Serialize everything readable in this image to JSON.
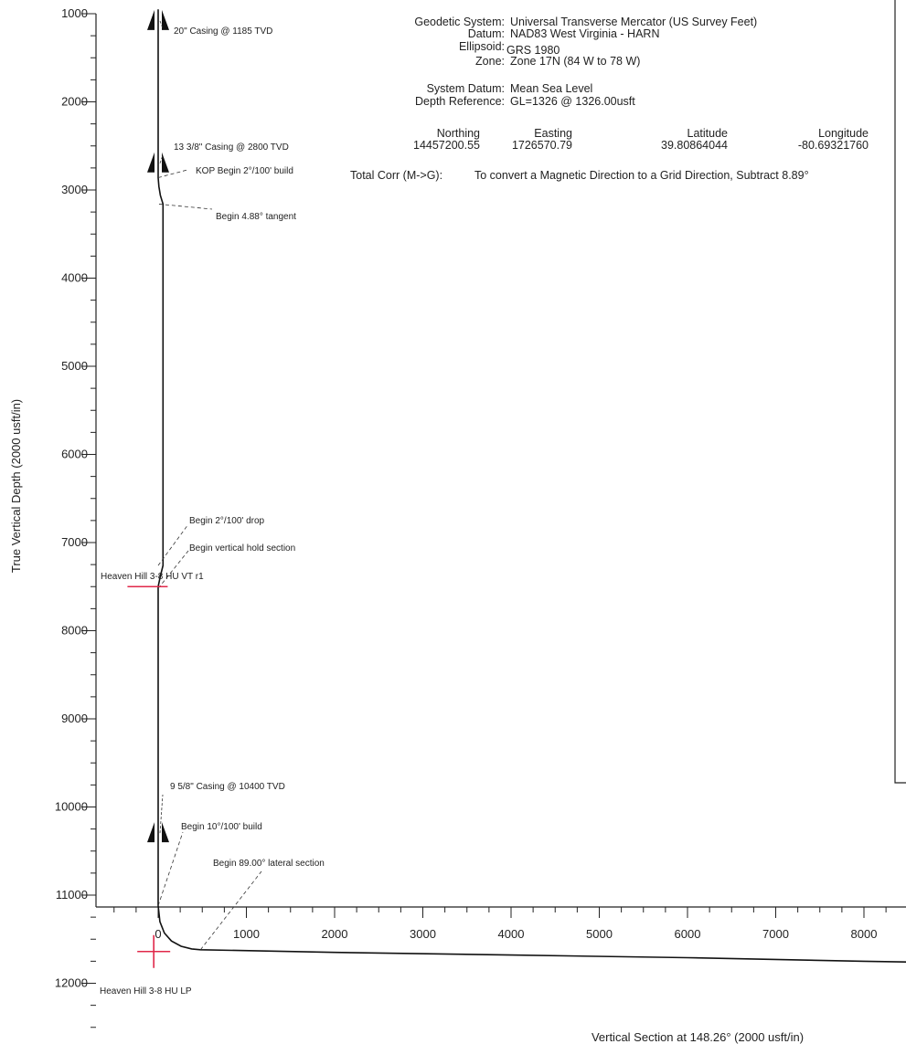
{
  "chart_data": {
    "type": "line",
    "xlabel": "Vertical Section at 148.26° (2000 usft/in)",
    "ylabel": "True Vertical Depth (2000 usft/in)",
    "xlim": [
      -700,
      9200
    ],
    "ylim": [
      12600,
      950
    ],
    "x_ticks": [
      0,
      1000,
      2000,
      3000,
      4000,
      5000,
      6000,
      7000,
      8000
    ],
    "x_tick_labels": [
      "0",
      "1000",
      "2000",
      "3000",
      "4000",
      "5000",
      "6000",
      "7000",
      "8000"
    ],
    "x_tick_partial": "9",
    "y_ticks": [
      1000,
      2000,
      3000,
      4000,
      5000,
      6000,
      7000,
      8000,
      9000,
      10000,
      11000,
      12000
    ],
    "y_tick_labels": [
      "1000",
      "2000",
      "3000",
      "4000",
      "5000",
      "6000",
      "7000",
      "8000",
      "9000",
      "10000",
      "11000",
      "12000"
    ],
    "series": [
      {
        "x": [
          0,
          0,
          8,
          25,
          55,
          55,
          25,
          0,
          0,
          0,
          20,
          70,
          150,
          260,
          380,
          480,
          2000,
          4000,
          6000,
          8000,
          9200
        ],
        "y": [
          950,
          2860,
          2960,
          3060,
          3160,
          7260,
          7380,
          7500,
          7520,
          11120,
          11300,
          11430,
          11520,
          11580,
          11610,
          11620,
          11650,
          11680,
          11710,
          11750,
          11770
        ]
      }
    ],
    "casings": [
      {
        "label": "20\" Casing @ 1185 TVD",
        "tvd": 1185
      },
      {
        "label": "13 3/8\" Casing @ 2800 TVD",
        "tvd": 2800
      },
      {
        "label": "9 5/8\" Casing @ 10400 TVD",
        "tvd": 10400
      }
    ],
    "annotations": [
      {
        "label": "KOP Begin 2°/100' build",
        "x": 0,
        "y": 2860
      },
      {
        "label": "Begin 4.88° tangent",
        "x": 10,
        "y": 3160
      },
      {
        "label": "Begin 2°/100' drop",
        "x": 0,
        "y": 7260
      },
      {
        "label": "Begin vertical hold section",
        "x": 0,
        "y": 7520
      },
      {
        "label": "Begin 10°/100' build",
        "x": 0,
        "y": 11120
      },
      {
        "label": "Begin 89.00° lateral section",
        "x": 480,
        "y": 11620
      }
    ],
    "targets": [
      {
        "label": "Heaven Hill 3-8 HU VT r1",
        "x": -120,
        "y": 7500
      },
      {
        "label": "Heaven Hill 3-8 HU LP",
        "x": -50,
        "y": 11640
      }
    ]
  },
  "header": {
    "geodetic_label": "Geodetic System:",
    "geodetic_value": "Universal Transverse Mercator (US Survey Feet)",
    "datum_label": "Datum:",
    "datum_value": "NAD83 West Virginia - HARN",
    "ellipsoid_label": "Ellipsoid:",
    "ellipsoid_value": "GRS 1980",
    "zone_label": "Zone:",
    "zone_value": "Zone 17N (84 W to 78 W)",
    "system_datum_label": "System Datum:",
    "system_datum_value": "Mean Sea Level",
    "depth_ref_label": "Depth Reference:",
    "depth_ref_value": "GL=1326 @ 1326.00usft",
    "northing_label": "Northing",
    "northing_value": "14457200.55",
    "easting_label": "Easting",
    "easting_value": "1726570.79",
    "latitude_label": "Latitude",
    "latitude_value": "39.80864044",
    "longitude_label": "Longitude",
    "longitude_value": "-80.69321760",
    "total_corr_label": "Total Corr (M->G):",
    "total_corr_value": "To convert a Magnetic Direction to a Grid Direction, Subtract 8.89°"
  },
  "colors": {
    "line": "#111111",
    "target": "#e0284a",
    "text": "#222222"
  }
}
